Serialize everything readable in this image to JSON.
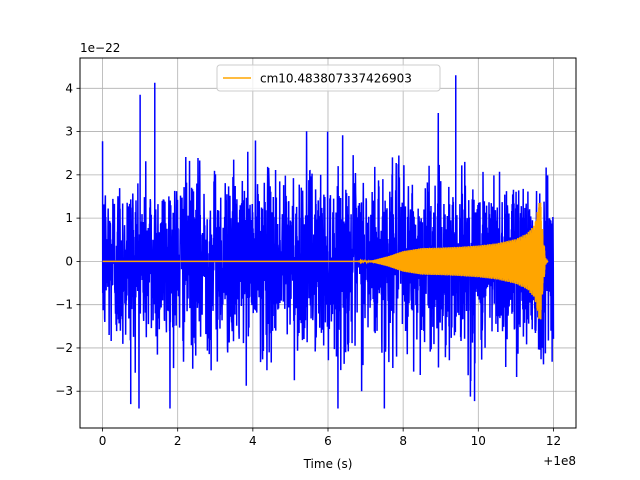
{
  "chart_data": {
    "type": "line",
    "title": "",
    "xlabel": "Time (s)",
    "ylabel": "",
    "x_offset_label": "+1e8",
    "y_scale_label": "1e−22",
    "xlim": [
      -0.6,
      12.6
    ],
    "ylim": [
      -3.85,
      4.7
    ],
    "x_ticks": [
      0,
      2,
      4,
      6,
      8,
      10,
      12
    ],
    "x_tick_labels": [
      "0",
      "2",
      "4",
      "6",
      "8",
      "10",
      "12"
    ],
    "y_ticks": [
      -3,
      -2,
      -1,
      0,
      1,
      2,
      3,
      4
    ],
    "y_tick_labels": [
      "−3",
      "−2",
      "−1",
      "0",
      "1",
      "2",
      "3",
      "4"
    ],
    "grid": true,
    "legend_position": "top-center",
    "series": [
      {
        "kind": "noise",
        "color": "#0000ff",
        "x_range": [
          0,
          12
        ],
        "typical_amplitude": 2.0,
        "max": 4.3,
        "min": -3.4
      },
      {
        "name": "cm10.483807337426903",
        "kind": "chirp",
        "color": "#ffa500",
        "x_range": [
          0,
          11.85
        ],
        "envelope": [
          [
            0,
            0.0
          ],
          [
            6.8,
            0.0
          ],
          [
            7.2,
            0.03
          ],
          [
            7.6,
            0.12
          ],
          [
            8.0,
            0.24
          ],
          [
            8.5,
            0.31
          ],
          [
            9.0,
            0.32
          ],
          [
            9.5,
            0.34
          ],
          [
            10.0,
            0.37
          ],
          [
            10.5,
            0.42
          ],
          [
            11.0,
            0.52
          ],
          [
            11.3,
            0.65
          ],
          [
            11.5,
            0.85
          ],
          [
            11.65,
            1.5
          ],
          [
            11.72,
            0.6
          ],
          [
            11.8,
            0.05
          ],
          [
            11.85,
            0.0
          ]
        ]
      }
    ]
  }
}
